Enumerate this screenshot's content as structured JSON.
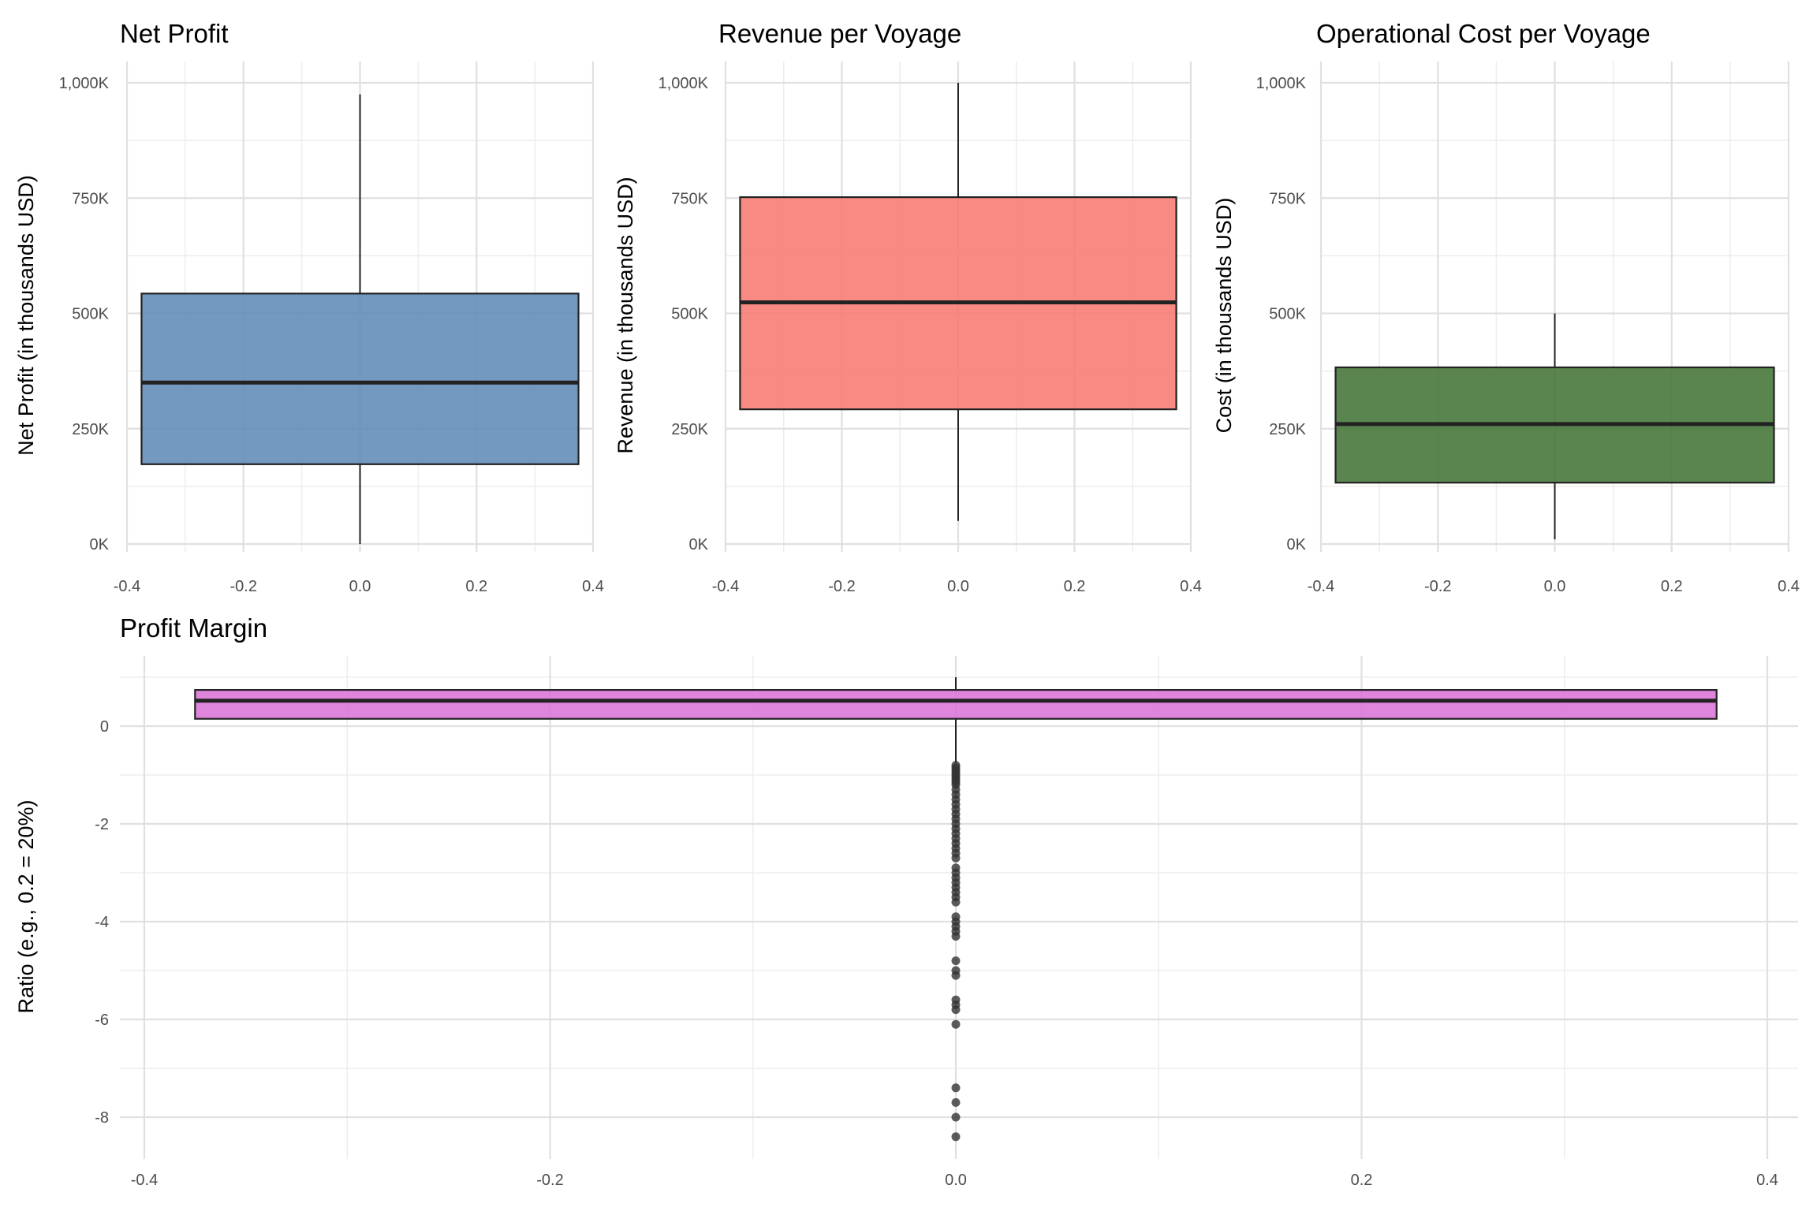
{
  "chart_data": [
    {
      "type": "box",
      "title": "Net Profit",
      "ylabel": "Net Profit (in thousands USD)",
      "xlim": [
        -0.4,
        0.4
      ],
      "ylim": [
        0,
        1000
      ],
      "x_ticks": [
        "-0.4",
        "-0.2",
        "0.0",
        "0.2",
        "0.4"
      ],
      "y_ticks": [
        "0K",
        "250K",
        "500K",
        "750K",
        "1,000K"
      ],
      "grid": true,
      "color": "#5b87b5",
      "box": {
        "x_center": 0.0,
        "half_width": 0.375,
        "min": 0,
        "q1": 173,
        "median": 350,
        "q3": 543,
        "max": 975
      },
      "outliers": []
    },
    {
      "type": "box",
      "title": "Revenue per Voyage",
      "ylabel": "Revenue (in thousands USD)",
      "xlim": [
        -0.4,
        0.4
      ],
      "ylim": [
        0,
        1000
      ],
      "x_ticks": [
        "-0.4",
        "-0.2",
        "0.0",
        "0.2",
        "0.4"
      ],
      "y_ticks": [
        "0K",
        "250K",
        "500K",
        "750K",
        "1,000K"
      ],
      "grid": true,
      "color": "#f8766d",
      "box": {
        "x_center": 0.0,
        "half_width": 0.375,
        "min": 50,
        "q1": 292,
        "median": 524,
        "q3": 752,
        "max": 1000
      },
      "outliers": []
    },
    {
      "type": "box",
      "title": "Operational Cost per Voyage",
      "ylabel": "Cost (in thousands USD)",
      "xlim": [
        -0.4,
        0.4
      ],
      "ylim": [
        0,
        1000
      ],
      "x_ticks": [
        "-0.4",
        "-0.2",
        "0.0",
        "0.2",
        "0.4"
      ],
      "y_ticks": [
        "0K",
        "250K",
        "500K",
        "750K",
        "1,000K"
      ],
      "grid": true,
      "color": "#3d7030",
      "box": {
        "x_center": 0.0,
        "half_width": 0.375,
        "min": 10,
        "q1": 133,
        "median": 260,
        "q3": 383,
        "max": 500
      },
      "outliers": []
    },
    {
      "type": "box",
      "title": "Profit Margin",
      "ylabel": "Ratio (e.g., 0.2 = 20%)",
      "xlim": [
        -0.4,
        0.4
      ],
      "ylim": [
        -8.5,
        1.0
      ],
      "x_ticks": [
        "-0.4",
        "-0.2",
        "0.0",
        "0.2",
        "0.4"
      ],
      "y_ticks": [
        "-8",
        "-6",
        "-4",
        "-2",
        "0"
      ],
      "grid": true,
      "color": "#da70d6",
      "box": {
        "x_center": 0.0,
        "half_width": 0.375,
        "min": -0.75,
        "q1": 0.15,
        "median": 0.52,
        "q3": 0.74,
        "max": 1.0
      },
      "outliers": [
        -0.8,
        -0.85,
        -0.9,
        -0.95,
        -1.0,
        -1.05,
        -1.1,
        -1.15,
        -1.2,
        -1.3,
        -1.4,
        -1.5,
        -1.6,
        -1.7,
        -1.8,
        -1.9,
        -2.0,
        -2.1,
        -2.2,
        -2.3,
        -2.4,
        -2.5,
        -2.6,
        -2.7,
        -2.9,
        -3.0,
        -3.1,
        -3.2,
        -3.3,
        -3.4,
        -3.5,
        -3.6,
        -3.9,
        -4.0,
        -4.1,
        -4.2,
        -4.3,
        -4.8,
        -5.0,
        -5.1,
        -5.6,
        -5.7,
        -5.8,
        -6.1,
        -7.4,
        -7.7,
        -8.0,
        -8.4
      ]
    }
  ]
}
